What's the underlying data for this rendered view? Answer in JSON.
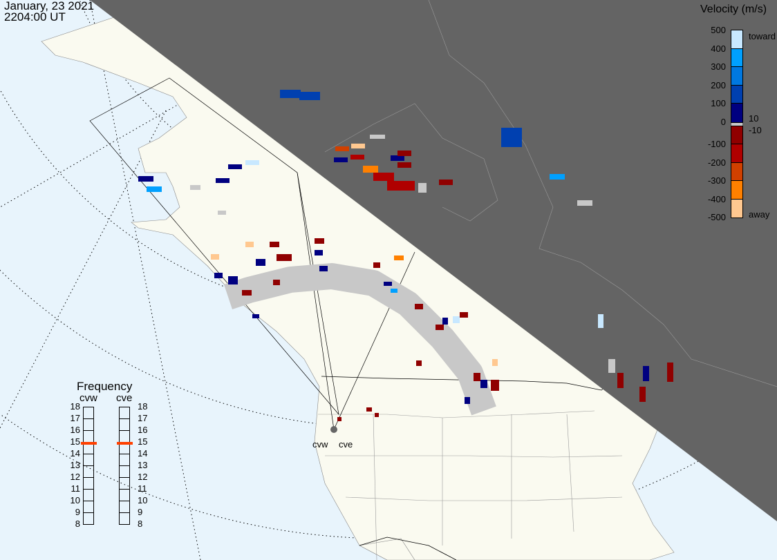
{
  "header": {
    "date": "January, 23 2021",
    "time": "2204:00 UT"
  },
  "velocity_legend": {
    "title": "Velocity (m/s)",
    "ticks": [
      "500",
      "400",
      "300",
      "200",
      "100",
      "0",
      "-100",
      "-200",
      "-300",
      "-400",
      "-500"
    ],
    "toward_label": "toward",
    "away_label": "away",
    "ground_scatter_upper": "10",
    "ground_scatter_lower": "-10",
    "colors": [
      "#c8e8ff",
      "#00a0ff",
      "#0078e0",
      "#0040b0",
      "#000080",
      "#900000",
      "#b00000",
      "#d04000",
      "#ff8000",
      "#ffc890"
    ],
    "ground_scatter_color": "#c8c8c8"
  },
  "frequency_panel": {
    "title": "Frequency",
    "radars": [
      {
        "name": "cvw",
        "frequency_mhz": 14.9
      },
      {
        "name": "cve",
        "frequency_mhz": 14.9
      }
    ],
    "scale": [
      "18",
      "17",
      "16",
      "15",
      "14",
      "13",
      "12",
      "11",
      "10",
      "9",
      "8"
    ],
    "marker_color": "#ff4000"
  },
  "sites": {
    "cvw": "cvw",
    "cve": "cve"
  },
  "colors": {
    "ocean": "#e8f4fc",
    "land": "#fafaf0",
    "night": "#646464"
  }
}
